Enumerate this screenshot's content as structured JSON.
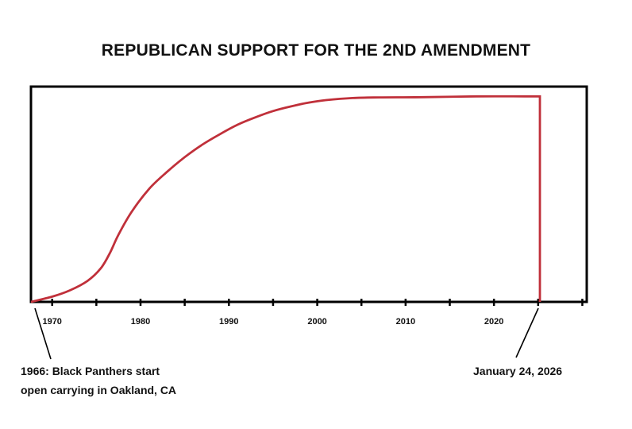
{
  "chart_data": {
    "type": "line",
    "title": "REPUBLICAN SUPPORT FOR THE 2ND AMENDMENT",
    "xlabel": "",
    "ylabel": "",
    "xlim": [
      1967.6,
      2030.5
    ],
    "ylim": [
      0,
      100
    ],
    "grid": false,
    "legend": "none",
    "x_tick_labels": [
      {
        "value": 1970,
        "label": "1970"
      },
      {
        "value": 1980,
        "label": "1980"
      },
      {
        "value": 1990,
        "label": "1990"
      },
      {
        "value": 2000,
        "label": "2000"
      },
      {
        "value": 2010,
        "label": "2010"
      },
      {
        "value": 2020,
        "label": "2020"
      }
    ],
    "x_minor_ticks": [
      1975,
      1985,
      1995,
      2005,
      2015,
      2025,
      2030
    ],
    "series": [
      {
        "name": "Republican support",
        "color": "#c0303a",
        "points": [
          [
            1967.6,
            0
          ],
          [
            1970,
            2.5
          ],
          [
            1972,
            5.5
          ],
          [
            1974,
            10
          ],
          [
            1975.5,
            16
          ],
          [
            1976.5,
            23
          ],
          [
            1977.5,
            32
          ],
          [
            1979,
            43
          ],
          [
            1981,
            54
          ],
          [
            1983,
            62
          ],
          [
            1985,
            69
          ],
          [
            1987,
            75
          ],
          [
            1989,
            80
          ],
          [
            1991,
            84.5
          ],
          [
            1993,
            88
          ],
          [
            1995,
            91
          ],
          [
            1997,
            93.2
          ],
          [
            1999,
            95
          ],
          [
            2001,
            96.2
          ],
          [
            2004,
            97.2
          ],
          [
            2007,
            97.5
          ],
          [
            2012,
            97.6
          ],
          [
            2018,
            98
          ],
          [
            2023.5,
            98
          ],
          [
            2025.2,
            98
          ],
          [
            2025.2,
            0
          ]
        ]
      }
    ],
    "annotations": [
      {
        "id": "left",
        "line1": "1966: Black Panthers start",
        "line2": "open carrying in Oakland, CA",
        "x": 1967.6
      },
      {
        "id": "right",
        "line1": "January 24, 2026",
        "x": 2025.2
      }
    ]
  }
}
